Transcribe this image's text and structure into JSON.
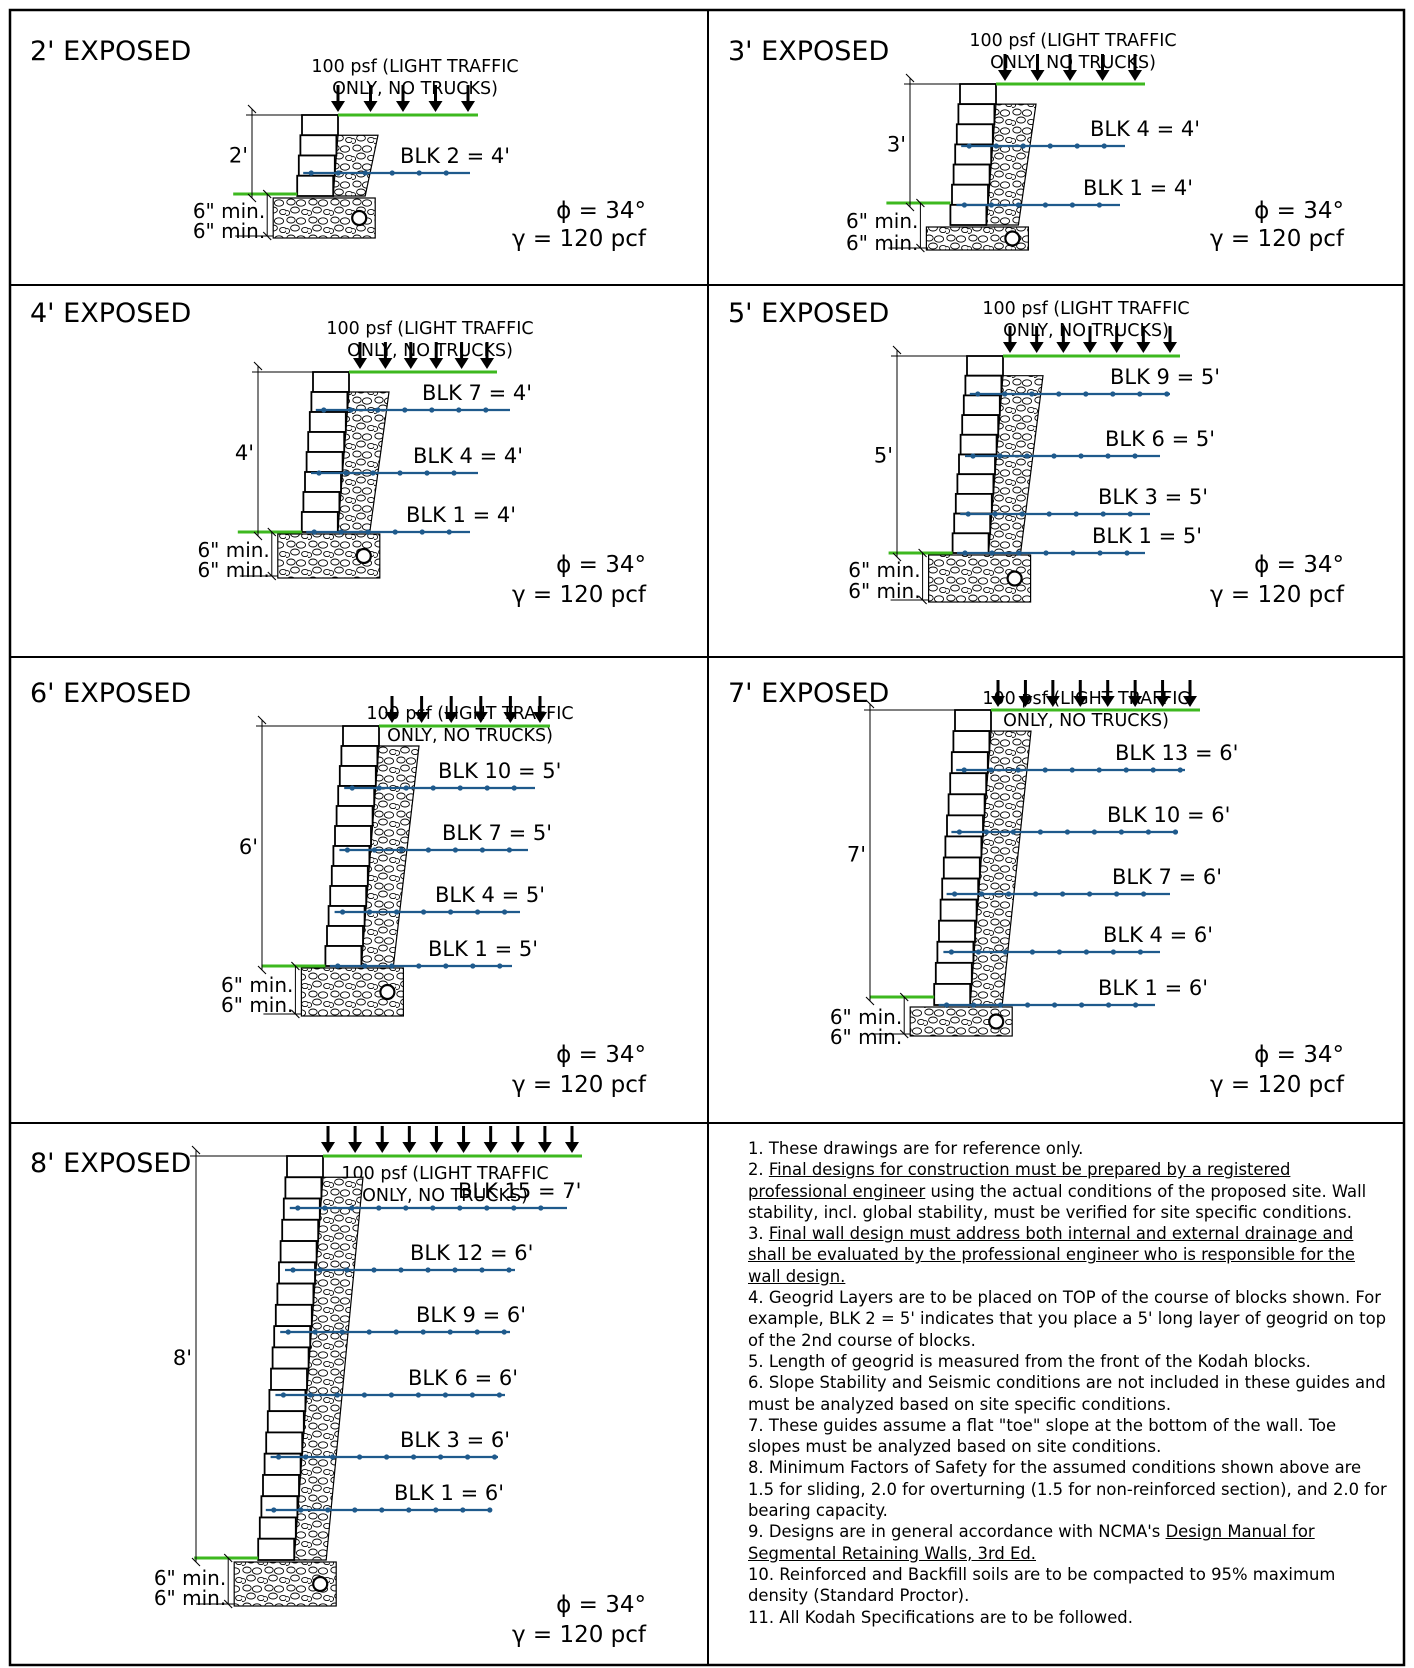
{
  "panels": [
    {
      "title": "2' EXPOSED",
      "height_label": "2'",
      "load_label": [
        "100 psf (LIGHT TRAFFIC",
        "ONLY, NO TRUCKS)"
      ],
      "grids": [
        "BLK 2 = 4'"
      ],
      "min_labels": [
        "6\" min.",
        "6\" min."
      ],
      "phi": "ϕ = 34°",
      "gamma": "γ = 120 pcf"
    },
    {
      "title": "3' EXPOSED",
      "height_label": "3'",
      "load_label": [
        "100 psf (LIGHT TRAFFIC",
        "ONLY, NO TRUCKS)"
      ],
      "grids": [
        "BLK 4 = 4'",
        "BLK 1 = 4'"
      ],
      "min_labels": [
        "6\" min.",
        "6\" min."
      ],
      "phi": "ϕ = 34°",
      "gamma": "γ = 120 pcf"
    },
    {
      "title": "4' EXPOSED",
      "height_label": "4'",
      "load_label": [
        "100 psf (LIGHT TRAFFIC",
        "ONLY, NO TRUCKS)"
      ],
      "grids": [
        "BLK 7 = 4'",
        "BLK 4 = 4'",
        "BLK 1 = 4'"
      ],
      "min_labels": [
        "6\" min.",
        "6\" min."
      ],
      "phi": "ϕ = 34°",
      "gamma": "γ = 120 pcf"
    },
    {
      "title": "5' EXPOSED",
      "height_label": "5'",
      "load_label": [
        "100 psf (LIGHT TRAFFIC",
        "ONLY, NO TRUCKS)"
      ],
      "grids": [
        "BLK 9 = 5'",
        "BLK 6 = 5'",
        "BLK 3 = 5'",
        "BLK 1 = 5'"
      ],
      "min_labels": [
        "6\" min.",
        "6\" min."
      ],
      "phi": "ϕ = 34°",
      "gamma": "γ = 120 pcf"
    },
    {
      "title": "6' EXPOSED",
      "height_label": "6'",
      "load_label": [
        "100 psf (LIGHT TRAFFIC",
        "ONLY, NO TRUCKS)"
      ],
      "grids": [
        "BLK 10 = 5'",
        "BLK 7 = 5'",
        "BLK 4 = 5'",
        "BLK 1 = 5'"
      ],
      "min_labels": [
        "6\" min.",
        "6\" min."
      ],
      "phi": "ϕ = 34°",
      "gamma": "γ = 120 pcf"
    },
    {
      "title": "7' EXPOSED",
      "height_label": "7'",
      "load_label": [
        "100 psf (LIGHT TRAFFIC",
        "ONLY, NO TRUCKS)"
      ],
      "grids": [
        "BLK 13 = 6'",
        "BLK 10 = 6'",
        "BLK 7 = 6'",
        "BLK 4 = 6'",
        "BLK 1 = 6'"
      ],
      "min_labels": [
        "6\" min.",
        "6\" min."
      ],
      "phi": "ϕ = 34°",
      "gamma": "γ = 120 pcf"
    },
    {
      "title": "8' EXPOSED",
      "height_label": "8'",
      "load_label": [
        "100 psf (LIGHT TRAFFIC",
        "ONLY, NO TRUCKS)"
      ],
      "grids": [
        "BLK 15 = 7'",
        "BLK 12 = 6'",
        "BLK 9 = 6'",
        "BLK 6 = 6'",
        "BLK 3 = 6'",
        "BLK 1 = 6'"
      ],
      "min_labels": [
        "6\" min.",
        "6\" min."
      ],
      "phi": "ϕ = 34°",
      "gamma": "γ = 120 pcf"
    }
  ],
  "notes": [
    [
      {
        "t": "1.  These drawings are for reference only."
      }
    ],
    [
      {
        "t": "2.  "
      },
      {
        "t": "Final designs for construction must be prepared by a registered professional engineer",
        "u": true
      },
      {
        "t": " using the actual conditions of the proposed site. Wall stability, incl. global stability, must be verified for site specific conditions."
      }
    ],
    [
      {
        "t": "3.  "
      },
      {
        "t": "Final wall design must address both internal and external drainage and shall be evaluated by the professional engineer who is responsible for the wall design.",
        "u": true
      }
    ],
    [
      {
        "t": "4.  Geogrid Layers are to be placed on TOP of the course of blocks shown. For example, BLK 2 = 5' indicates that you place a 5' long layer of geogrid on top of the 2nd course of blocks."
      }
    ],
    [
      {
        "t": "5.  Length of geogrid is measured from the front of the Kodah blocks."
      }
    ],
    [
      {
        "t": "6.  Slope Stability and Seismic conditions are not included in these guides and must be analyzed based on site specific conditions."
      }
    ],
    [
      {
        "t": "7.  These guides assume a flat \"toe\" slope at the bottom of the wall.  Toe slopes must be analyzed based on site conditions."
      }
    ],
    [
      {
        "t": "8.  Minimum Factors of Safety for the assumed conditions shown above are 1.5 for sliding, 2.0 for overturning (1.5 for non-reinforced section), and 2.0 for bearing capacity."
      }
    ],
    [
      {
        "t": "9.  Designs are in general accordance with NCMA's "
      },
      {
        "t": "Design Manual for Segmental Retaining Walls, 3rd Ed.",
        "u": true
      }
    ],
    [
      {
        "t": "10.  Reinforced and Backfill soils are to be compacted to 95% maximum density (Standard Proctor)."
      }
    ],
    [
      {
        "t": "11.  All Kodah Specifications are to be followed."
      }
    ]
  ],
  "colors": {
    "geogrid": "#1f5a8c",
    "grade": "#3db81f",
    "ink": "#000000"
  }
}
